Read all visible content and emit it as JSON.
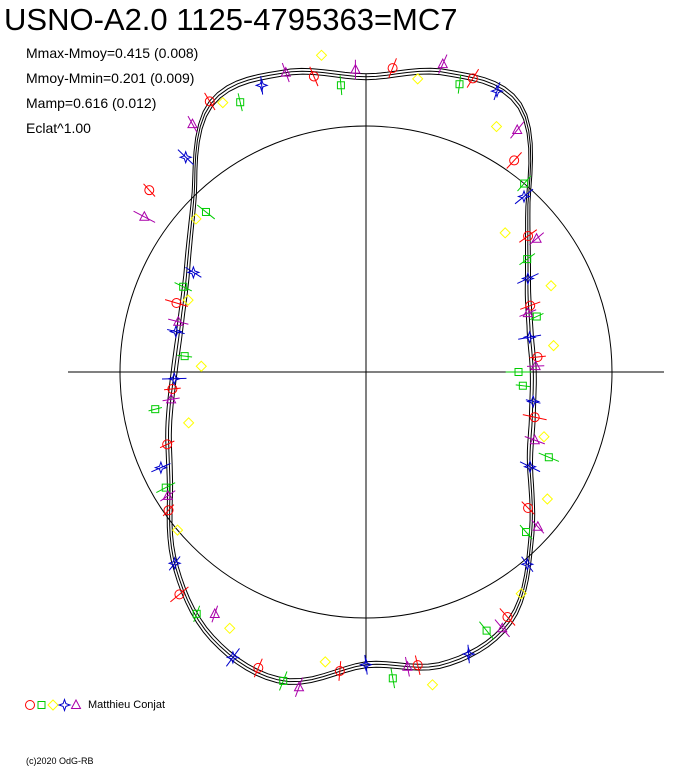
{
  "header": {
    "title": "USNO-A2.0 1125-4795363=MC7"
  },
  "stats": [
    "Mmax-Mmoy=0.415 (0.008)",
    "Mmoy-Mmin=0.201 (0.009)",
    "Mamp=0.616 (0.012)",
    "Eclat^1.00"
  ],
  "legend": {
    "label": "Matthieu Conjat",
    "symbols": [
      "circle",
      "square",
      "diamond",
      "star",
      "triangle"
    ]
  },
  "footer": {
    "copyright": "(c)2020 OdG-RB"
  },
  "colors": {
    "circle": "#ff0000",
    "square": "#00cc00",
    "diamond": "#ffff00",
    "star": "#0000cc",
    "triangle": "#aa00aa",
    "curve": "#000000"
  },
  "chart_data": {
    "type": "scatter",
    "projection": "polar",
    "reference_radius": 1.0,
    "mmax_minus_mmoy": 0.415,
    "mmoy_minus_mmin": 0.201,
    "amplitude": 0.616,
    "eclat_exponent": 1.0,
    "model_curve": {
      "angle_deg": [
        0,
        15,
        30,
        45,
        60,
        75,
        90,
        105,
        120,
        135,
        150,
        165,
        180,
        195,
        210,
        225,
        240,
        255,
        270,
        285,
        300,
        315,
        330,
        345
      ],
      "radius": [
        0.68,
        0.69,
        0.76,
        0.93,
        1.25,
        1.26,
        1.2,
        1.26,
        1.26,
        0.99,
        0.84,
        0.78,
        0.78,
        0.83,
        0.92,
        1.1,
        1.25,
        1.3,
        1.19,
        1.23,
        1.17,
        0.95,
        0.77,
        0.7
      ]
    },
    "series": [
      {
        "name": "Matthieu Conjat",
        "marker": "circle",
        "angle_deg": [
          5,
          22,
          40,
          55,
          70,
          85,
          100,
          120,
          140,
          160,
          185,
          200,
          215,
          230,
          250,
          265,
          280,
          300,
          320,
          345
        ],
        "radius": [
          0.7,
          0.72,
          0.86,
          1.05,
          1.27,
          1.24,
          1.22,
          1.27,
          1.15,
          0.82,
          0.79,
          0.86,
          0.98,
          1.18,
          1.28,
          1.22,
          1.21,
          1.15,
          0.86,
          0.71
        ]
      },
      {
        "name": "Matthieu Conjat",
        "marker": "square",
        "angle_deg": [
          0,
          18,
          35,
          50,
          72,
          95,
          115,
          135,
          155,
          175,
          190,
          210,
          235,
          255,
          275,
          295,
          315,
          335,
          355
        ],
        "radius": [
          0.62,
          0.73,
          0.8,
          1.0,
          1.23,
          1.17,
          1.21,
          0.92,
          0.82,
          0.74,
          0.87,
          0.94,
          1.2,
          1.3,
          1.25,
          1.16,
          0.92,
          0.82,
          0.64
        ]
      },
      {
        "name": "Matthieu Conjat",
        "marker": "diamond",
        "angle_deg": [
          8,
          25,
          45,
          62,
          80,
          98,
          118,
          138,
          158,
          178,
          196,
          220,
          242,
          262,
          282,
          305,
          325,
          340
        ],
        "radius": [
          0.77,
          0.83,
          0.8,
          1.13,
          1.21,
          1.3,
          1.24,
          0.93,
          0.78,
          0.67,
          0.75,
          1.0,
          1.18,
          1.19,
          1.3,
          1.1,
          0.9,
          0.77
        ]
      },
      {
        "name": "Matthieu Conjat",
        "marker": "star",
        "angle_deg": [
          12,
          30,
          48,
          65,
          110,
          130,
          150,
          168,
          182,
          205,
          225,
          245,
          270,
          290,
          310,
          330,
          350
        ],
        "radius": [
          0.68,
          0.76,
          0.96,
          1.26,
          1.24,
          1.14,
          0.81,
          0.79,
          0.78,
          0.92,
          1.1,
          1.28,
          1.19,
          1.22,
          1.02,
          0.77,
          0.69
        ]
      },
      {
        "name": "Matthieu Conjat",
        "marker": "triangle",
        "angle_deg": [
          2,
          20,
          38,
          58,
          76,
          92,
          105,
          125,
          145,
          165,
          188,
          212,
          238,
          258,
          278,
          298,
          318,
          338
        ],
        "radius": [
          0.69,
          0.7,
          0.88,
          1.16,
          1.29,
          1.23,
          1.26,
          1.23,
          1.1,
          0.79,
          0.8,
          0.95,
          1.16,
          1.31,
          1.21,
          1.18,
          0.94,
          0.74
        ]
      }
    ]
  }
}
